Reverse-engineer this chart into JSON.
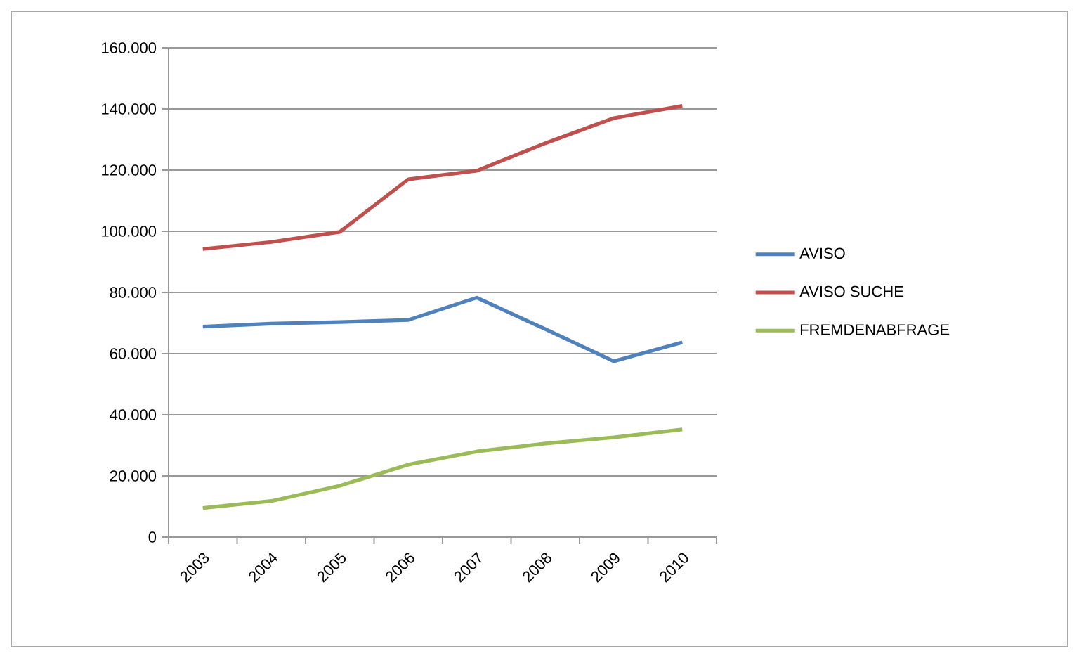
{
  "chart_data": {
    "type": "line",
    "categories": [
      "2003",
      "2004",
      "2005",
      "2006",
      "2007",
      "2008",
      "2009",
      "2010"
    ],
    "series": [
      {
        "name": "AVISO",
        "color": "#4f81bd",
        "values": [
          68800,
          69800,
          70300,
          71000,
          78300,
          68000,
          57500,
          63700
        ]
      },
      {
        "name": "AVISO SUCHE",
        "color": "#c0504d",
        "values": [
          94200,
          96500,
          99800,
          117000,
          119800,
          128800,
          137000,
          141000
        ]
      },
      {
        "name": "FREMDENABFRAGE",
        "color": "#9bbb59",
        "values": [
          9500,
          11800,
          16800,
          23700,
          28000,
          30600,
          32600,
          35200
        ]
      }
    ],
    "ylim": [
      0,
      160000
    ],
    "yticks": [
      {
        "value": 0,
        "label": "0"
      },
      {
        "value": 20000,
        "label": "20.000"
      },
      {
        "value": 40000,
        "label": "40.000"
      },
      {
        "value": 60000,
        "label": "60.000"
      },
      {
        "value": 80000,
        "label": "80.000"
      },
      {
        "value": 100000,
        "label": "100.000"
      },
      {
        "value": 120000,
        "label": "120.000"
      },
      {
        "value": 140000,
        "label": "140.000"
      },
      {
        "value": 160000,
        "label": "160.000"
      }
    ],
    "grid": "y",
    "legend": "right",
    "marker": "none",
    "line_style": "solid"
  }
}
